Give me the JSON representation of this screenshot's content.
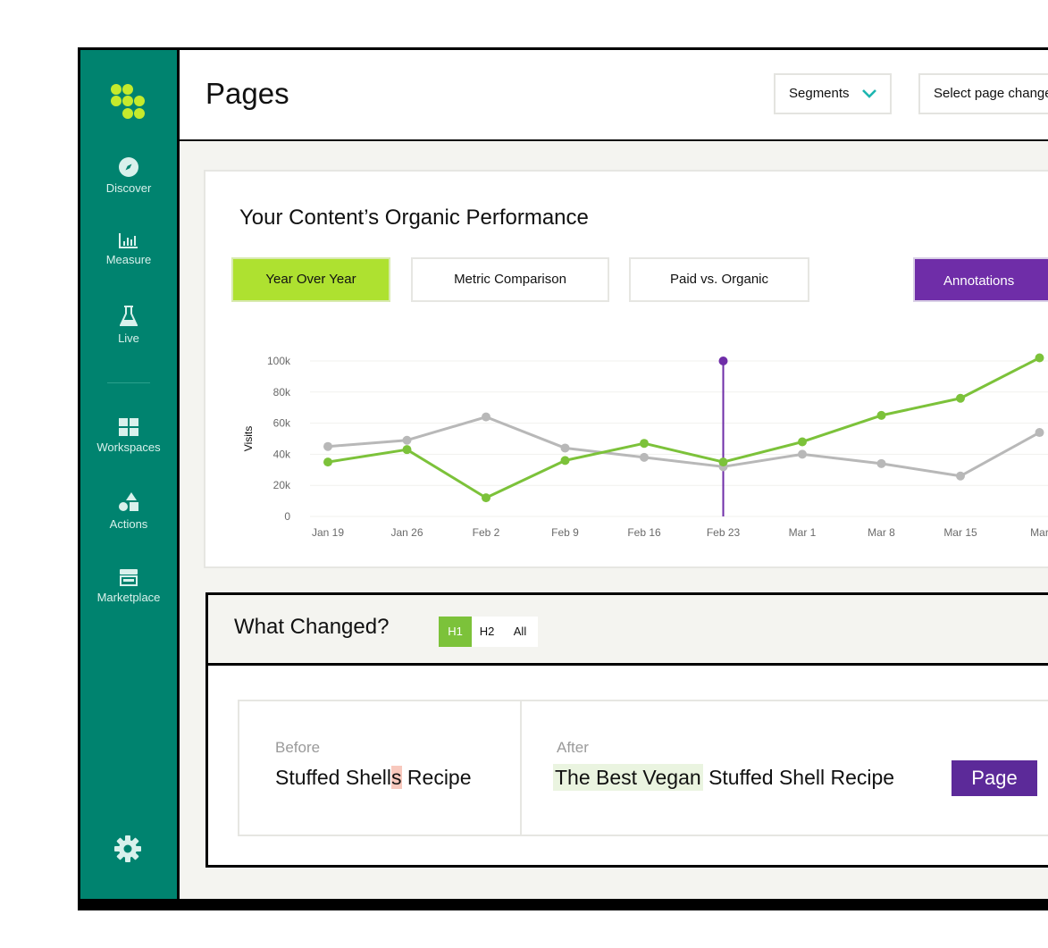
{
  "sidebar": {
    "items": [
      {
        "label": "Discover",
        "icon": "compass-icon"
      },
      {
        "label": "Measure",
        "icon": "bar-chart-icon"
      },
      {
        "label": "Live",
        "icon": "flask-icon"
      },
      {
        "label": "Workspaces",
        "icon": "grid-icon"
      },
      {
        "label": "Actions",
        "icon": "shapes-icon"
      },
      {
        "label": "Marketplace",
        "icon": "store-icon"
      }
    ],
    "settings_icon": "gear-icon",
    "logo_icon": "dots-logo-icon",
    "bg_color": "#00836f",
    "logo_color": "#c5ea2c"
  },
  "header": {
    "title": "Pages",
    "segments_label": "Segments",
    "select_label": "Select page change"
  },
  "performance": {
    "title": "Your Content’s Organic Performance",
    "tabs": [
      "Year Over Year",
      "Metric Comparison",
      "Paid vs. Organic"
    ],
    "active_tab": "Year Over Year",
    "annotations_label": "Annotations",
    "accent_green": "#aee130",
    "accent_purple": "#6f2da8"
  },
  "chart_data": {
    "type": "line",
    "ylabel": "Visits",
    "ylim": [
      0,
      100000
    ],
    "y_ticks": [
      "0",
      "20k",
      "40k",
      "60k",
      "80k",
      "100k"
    ],
    "categories": [
      "Jan 19",
      "Jan 26",
      "Feb 2",
      "Feb 9",
      "Feb 16",
      "Feb 23",
      "Mar 1",
      "Mar 8",
      "Mar 15",
      "Mar"
    ],
    "series": [
      {
        "color": "#7cc23a",
        "values": [
          35000,
          43000,
          12000,
          36000,
          47000,
          35000,
          48000,
          65000,
          76000,
          102000
        ]
      },
      {
        "color": "#b8b8b8",
        "values": [
          45000,
          49000,
          64000,
          44000,
          38000,
          32000,
          40000,
          34000,
          26000,
          54000
        ]
      }
    ],
    "annotation": {
      "category": "Feb 23",
      "color": "#6f2da8"
    },
    "grid": true
  },
  "what_changed": {
    "title": "What Changed?",
    "tabs": [
      "H1",
      "H2",
      "All"
    ],
    "active_tab": "H1",
    "before_label": "Before",
    "before_parts": [
      "Stuffed Shel",
      "l",
      "s",
      " Recipe"
    ],
    "after_label": "After",
    "after_highlight": "The Best Vegan",
    "after_rest": " Stuffed Shell Recipe",
    "badge": "Page"
  }
}
